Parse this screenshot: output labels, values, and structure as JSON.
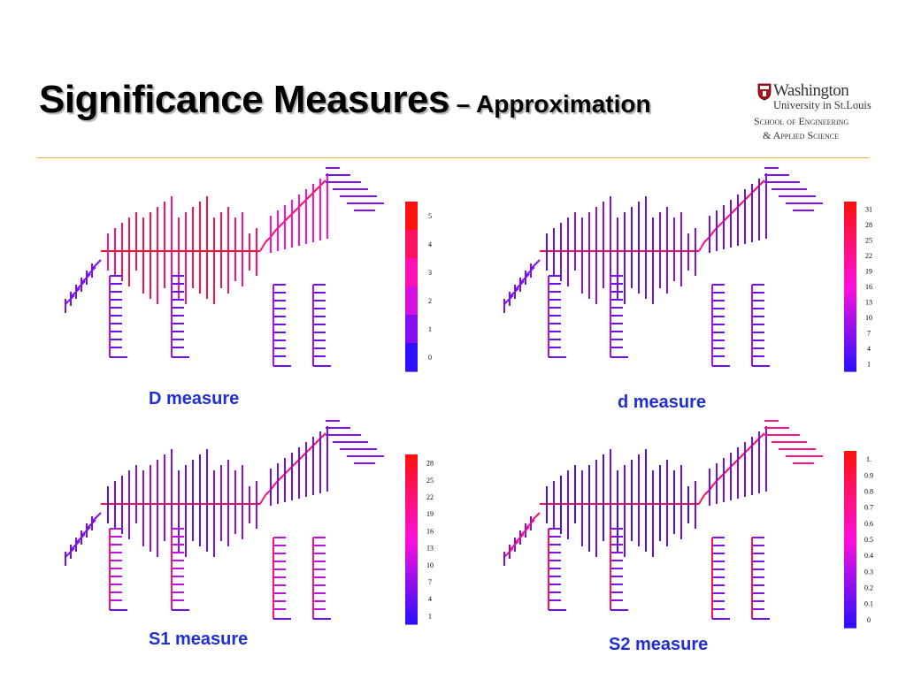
{
  "title": {
    "main": "Significance Measures",
    "sub": " – Approximation"
  },
  "logo": {
    "line1": "Washington",
    "line2": "University in St.Louis",
    "line3": "School of Engineering",
    "line4": "& Applied Science"
  },
  "colors": {
    "low": "#2f10ff",
    "high": "#ff1010",
    "rule": "#f0b050",
    "caption": "#1f2fd6"
  },
  "panels": [
    {
      "caption": "D measure",
      "scale_labels": [
        "5",
        "4",
        "3",
        "2",
        "1",
        "0"
      ],
      "scale_type": "discrete"
    },
    {
      "caption": "d measure",
      "scale_labels": [
        "31",
        "28",
        "25",
        "22",
        "19",
        "16",
        "13",
        "10",
        "7",
        "4",
        "1"
      ],
      "scale_type": "continuous"
    },
    {
      "caption": "S1  measure",
      "scale_labels": [
        "28",
        "25",
        "22",
        "19",
        "16",
        "13",
        "10",
        "7",
        "4",
        "1"
      ],
      "scale_type": "continuous"
    },
    {
      "caption": "S2  measure",
      "scale_labels": [
        "1.",
        "0.9",
        "0.8",
        "0.7",
        "0.6",
        "0.5",
        "0.4",
        "0.3",
        "0.2",
        "0.1",
        "0"
      ],
      "scale_type": "continuous"
    }
  ]
}
